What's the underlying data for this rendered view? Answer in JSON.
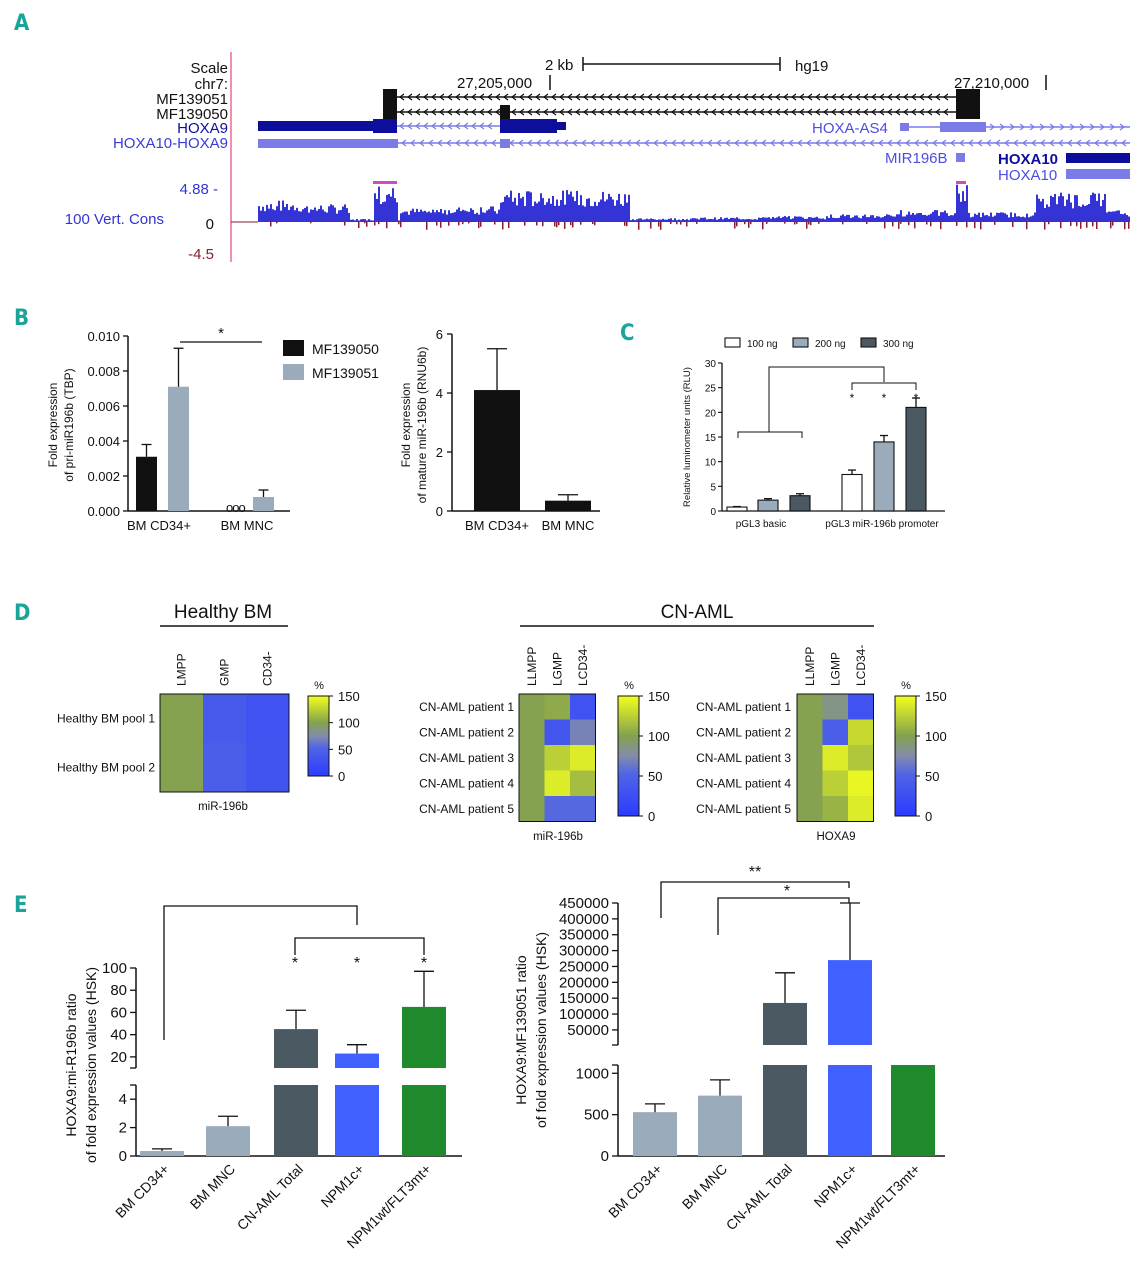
{
  "panel_labels": [
    "A",
    "B",
    "C",
    "D",
    "E"
  ],
  "colors": {
    "panel_label": "#1aa49a",
    "ucsc_dark_blue": "#0e0e9c",
    "ucsc_light_blue": "#7b7be8",
    "ucsc_text_blue": "#3a3ad4",
    "cons_positive": "#3333d6",
    "cons_negative": "#8a1c2c",
    "black": "#111111",
    "grey_blue": "#9aabbb",
    "dark_slate": "#4a5861",
    "royal_blue": "#4060ff",
    "green": "#1e8a2b",
    "heat_low": "#2a3cff",
    "heat_mid": "#84a24e",
    "heat_high": "#f4ff1e"
  },
  "genome_browser": {
    "scale_label": "Scale",
    "scale_bar_label": "2 kb",
    "assembly": "hg19",
    "chrom_label": "chr7:",
    "coord_1": "27,205,000",
    "coord_2": "27,210,000",
    "tracks": [
      {
        "name": "MF139051",
        "color": "#111111"
      },
      {
        "name": "MF139050",
        "color": "#111111"
      },
      {
        "name": "HOXA9",
        "color": "#0e0e9c"
      },
      {
        "name": "HOXA10-HOXA9",
        "color": "#3a3ad4"
      }
    ],
    "right_labels": {
      "hoxa_as4": "HOXA-AS4",
      "mir196b": "MIR196B",
      "hoxa10_dark": "HOXA10",
      "hoxa10_light": "HOXA10"
    },
    "cons_track": "100 Vert. Cons",
    "cons_max": "4.88 -",
    "cons_zero": "0",
    "cons_min": "-4.5"
  },
  "chart_data": [
    {
      "id": "B-left",
      "type": "bar",
      "ylabel_line1": "Fold expression",
      "ylabel_line2": "of pri-miR196b (TBP)",
      "categories": [
        "BM CD34+",
        "BM MNC"
      ],
      "series": [
        {
          "name": "MF139050",
          "values": [
            0.0031,
            0.0
          ],
          "errors": [
            0.0007,
            0.0
          ]
        },
        {
          "name": "MF139051",
          "values": [
            0.0071,
            0.0008
          ],
          "errors": [
            0.0022,
            0.0004
          ]
        }
      ],
      "yticks": [
        "0.000",
        "0.002",
        "0.004",
        "0.006",
        "0.008",
        "0.010"
      ],
      "ylim": [
        0,
        0.01
      ],
      "significance": "*",
      "no_expression_marker": "ooo"
    },
    {
      "id": "B-right",
      "type": "bar",
      "ylabel_line1": "Fold expression",
      "ylabel_line2": "of mature miR-196b (RNU6b)",
      "categories": [
        "BM CD34+",
        "BM MNC"
      ],
      "values": [
        4.1,
        0.35
      ],
      "errors": [
        1.4,
        0.2
      ],
      "yticks": [
        "0",
        "2",
        "4",
        "6"
      ],
      "ylim": [
        0,
        6
      ]
    },
    {
      "id": "C",
      "type": "bar",
      "ylabel": "Relative luminometer units (RLU)",
      "categories": [
        "pGL3 basic",
        "pGL3 miR-196b promoter"
      ],
      "series": [
        {
          "name": "100 ng",
          "values": [
            0.8,
            7.4
          ],
          "errors": [
            0.1,
            0.9
          ]
        },
        {
          "name": "200 ng",
          "values": [
            2.2,
            14.0
          ],
          "errors": [
            0.3,
            1.3
          ]
        },
        {
          "name": "300 ng",
          "values": [
            3.1,
            21.0
          ],
          "errors": [
            0.4,
            1.9
          ]
        }
      ],
      "yticks": [
        "0",
        "5",
        "10",
        "15",
        "20",
        "25",
        "30"
      ],
      "ylim": [
        0,
        30
      ],
      "significance": "*"
    },
    {
      "id": "D-healthy",
      "type": "heatmap",
      "group_title": "Healthy BM",
      "columns": [
        "LMPP",
        "GMP",
        "CD34-"
      ],
      "rows": [
        "Healthy BM pool 1",
        "Healthy BM pool 2"
      ],
      "values": [
        [
          100,
          40,
          30
        ],
        [
          100,
          45,
          32
        ]
      ],
      "xlabel": "miR-196b",
      "colorbar_title": "%",
      "colorbar_ticks": [
        "150",
        "100",
        "50",
        "0"
      ],
      "vmin": 0,
      "vmax": 150
    },
    {
      "id": "D-aml-mir",
      "type": "heatmap",
      "group_title": "CN-AML",
      "columns": [
        "LLMPP",
        "LGMP",
        "LCD34-"
      ],
      "rows": [
        "CN-AML patient 1",
        "CN-AML patient 2",
        "CN-AML patient 3",
        "CN-AML patient 4",
        "CN-AML patient 5"
      ],
      "values": [
        [
          100,
          105,
          30
        ],
        [
          100,
          35,
          70
        ],
        [
          100,
          125,
          140
        ],
        [
          100,
          140,
          115
        ],
        [
          100,
          55,
          55
        ]
      ],
      "xlabel": "miR-196b",
      "colorbar_title": "%",
      "colorbar_ticks": [
        "150",
        "100",
        "50",
        "0"
      ],
      "vmin": 0,
      "vmax": 150
    },
    {
      "id": "D-aml-hoxa9",
      "type": "heatmap",
      "columns": [
        "LLMPP",
        "LGMP",
        "LCD34-"
      ],
      "rows": [
        "CN-AML patient 1",
        "CN-AML patient 2",
        "CN-AML patient 3",
        "CN-AML patient 4",
        "CN-AML patient 5"
      ],
      "values": [
        [
          100,
          85,
          30
        ],
        [
          100,
          45,
          130
        ],
        [
          100,
          140,
          120
        ],
        [
          100,
          125,
          145
        ],
        [
          100,
          110,
          140
        ]
      ],
      "xlabel": "HOXA9",
      "colorbar_title": "%",
      "colorbar_ticks": [
        "150",
        "100",
        "50",
        "0"
      ],
      "vmin": 0,
      "vmax": 150
    },
    {
      "id": "E-left",
      "type": "bar",
      "ylabel_line1": "HOXA9:mi-R196b ratio",
      "ylabel_line2": "of fold expression values (HSK)",
      "categories": [
        "BM CD34+",
        "BM MNC",
        "CN-AML Total",
        "NPM1c+",
        "NPM1wt/FLT3mt+"
      ],
      "values": [
        0.35,
        2.1,
        45,
        23,
        65
      ],
      "errors": [
        0.15,
        0.7,
        17,
        8,
        32
      ],
      "colors": [
        "#9aabbb",
        "#9aabbb",
        "#4a5861",
        "#4060ff",
        "#1e8a2b"
      ],
      "axis_break": {
        "lower": [
          0,
          5
        ],
        "upper": [
          10,
          100
        ]
      },
      "yticks_lower": [
        "0",
        "2",
        "4"
      ],
      "yticks_upper": [
        "20",
        "40",
        "60",
        "80",
        "100"
      ],
      "significance": [
        "*",
        "*",
        "*"
      ]
    },
    {
      "id": "E-right",
      "type": "bar",
      "ylabel_line1": "HOXA9:MF139051 ratio",
      "ylabel_line2": "of fold expression values (HSK)",
      "categories": [
        "BM CD34+",
        "BM MNC",
        "CN-AML Total",
        "NPM1c+",
        "NPM1wt/FLT3mt+"
      ],
      "values": [
        530,
        730,
        135000,
        270000,
        2500
      ],
      "errors": [
        100,
        190,
        95000,
        180000,
        0
      ],
      "colors": [
        "#9aabbb",
        "#9aabbb",
        "#4a5861",
        "#4060ff",
        "#1e8a2b"
      ],
      "axis_break": {
        "lower": [
          0,
          1100
        ],
        "upper": [
          2500,
          450000
        ]
      },
      "yticks_lower": [
        "0",
        "500",
        "1000"
      ],
      "yticks_upper": [
        "50000",
        "100000",
        "150000",
        "200000",
        "250000",
        "300000",
        "350000",
        "400000",
        "450000"
      ],
      "significance": [
        "**",
        "*"
      ]
    }
  ]
}
